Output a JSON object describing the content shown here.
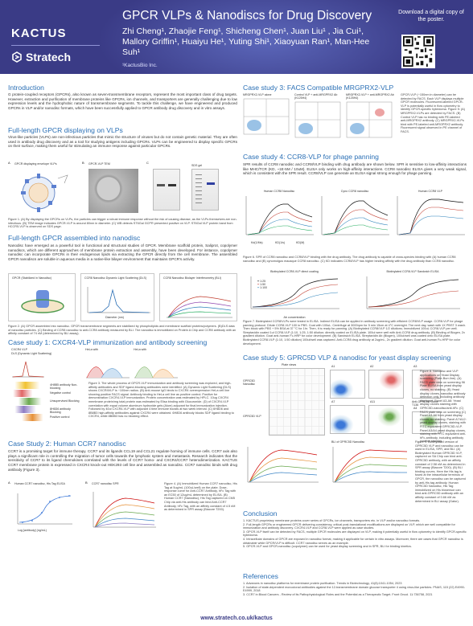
{
  "header": {
    "brand_kactus": "KACTUS",
    "brand_stratech": "Stratech",
    "title": "GPCR VLPs & Nanodiscs  for Drug Discovery",
    "authors_line1": "Zhi Cheng¹, Zhaojie Feng¹, Shicheng Chen¹, Juan Liu¹ , Jia Cui¹,",
    "authors_line2": "Mallory Griffin¹, Huaiyu He¹, Yuting Shi¹, Xiaoyuan Ran¹, Man-Hee Suh¹",
    "affiliation": "¹KactusBio Inc.",
    "download": "Download a digital copy of the poster."
  },
  "left": {
    "intro_title": "Introduction",
    "intro_text": "G protein-coupled receptors (GPCRs), also known as seven-transmembrane receptors, represent the most important class of drug targets. However, extraction and purification of membrane proteins like GPCRs, ion channels, and transporters are generally challenging due to low expression levels and the hydrophobic nature of transmembrane segments. To tackle this challenge, we have engineered and produced GPCRs in VLP and/or nanodisc formats, which have been successfully applied to GPCR antibody drug discovery and in vitro assays.",
    "vlp_title": "Full-length GPCR displaying on VLPs",
    "vlp_text": "Virus-like particles (VLPs) are non-infectious particles that mimic the structure of viruses but do not contain genetic material. They are often used in antibody drug discovery and as a tool for studying antigens including GPCRs. VLPs can be engineered to display specific GPCRs on their surface, making them useful for stimulating an immune response against particular GPCRs.",
    "vlp_panels": [
      "A",
      "B",
      "C"
    ],
    "vlp_panel_a": "GPCR displaying envelope VLPs",
    "vlp_panel_b": "GPCR-VLP TEM",
    "vlp_panel_c_gel": "SDS gel",
    "vlp_caption": "Figure 1. (A) By displaying the GPCRs on VLPs, the particles can trigger a robust immune response without the risk of causing disease, as the VLPs themselves are non-infectious. (B) TEM image indicates GPCR-VLP is around 80nm in diameter. (C) WB detects ST6Gal GCPR presented positive on VLP. ST6Gal VLP protein band from HCCR5-VLP is observed on SDS page.",
    "nano_title": "Full-length GPCR assembled into nanodisc",
    "nano_text": "Nanodisc have emerged as a powerful tool in functional and structural studies of GPCR. Membrane scaffold protein, Saliprot, copolymer nanodiscs, which are different approaches of membrane protein extraction and assembly, have been developed. For instance, copolymer nanodisc can incorporate GPCRs in their endogenous lipids via extracting the GPCR directly from the cell membrane. The assembled GPCR nanodiscs are soluble in aqueous media in a native-like bilayer environment that maintains GPCR's activity.",
    "nano_panel_a": "GPCR (Stabilized in Nanodisc)",
    "nano_panel_b": "CCR8 Nanodisc Dynamic Light Scattering (DLS)",
    "nano_panel_c": "CCR8 Nanodisc Biolayer Interferometry (BLI)",
    "nano_axis_b": "Diameter (nm)",
    "nano_caption": "Figure 2. (A) GPCR assembled into nanodisc. GPCR transmembrane segments are stabilized by phospholipids and membrane scaffold proteins/polymers. (B)DLS data of nanodisc particles. (C) Binding of CCR8 nanodisc to anti-CCR8 antibody measured by BLI. The nanodisc is immobilized on Protein A Chip and CCR8 antibody with an affinity constant of 74 nM (determined by BLI assay).",
    "cxcr4_title": "Case study 1: CXCR4-VLP immunization and antibody screening",
    "cxcr4_labels": [
      "CXCR4 VLP",
      "DLS (Dynamic Light Scattering)",
      "HeLa with  ",
      "HeLa with  "
    ],
    "cxcr4_legend": [
      "4H8B5 antibody Non-blocking",
      "Negative control",
      "Unsupervised Blocking",
      "8H6D6 antibody Blocking",
      "Positive control"
    ],
    "cxcr4_caption": "Figure 3. The whole process of GPCR-VLP immunization and antibody screening was explored, and high-affinity antibodies and SDF ligand-blocking antibodies were identified. (A) Dynamic Light Scattering (DLS) shows CXCR4VLP is ~100nm radius. (B) Anti-mouse IgG binds to CXCR4 overexpression HeLa cell line showing positive FACS signal. Antibody binding to HeLa cell line as positive control. Positive for demonstration CXCR4-VLP immunization. Protein concentration was estimated by HPLC. 10ug CXCR4 membrane protein/mg total protein was estimated by Elisa binding with Glucuronide. (D) of CXCR4-VLP correlation with equal volume aluminum hydroxide gels (Alum) adjuvant for final immunization injection. Followed by 40ul CXCR4-VLP with adjuvant 4 time immune boosts at two week interval. (C) 6H8D6 and 8B8B3 high-affinity antibodies against CXCR4 were obtained. 6H8D6 antibody blocks SDF ligand binding to CXCR4, while 8B8B3 has no blocking effect.",
    "ccr7_title": "Case Study 2: Human CCR7 nanodisc",
    "ccr7_text": "CCR7 is a promising target for immune therapy. CCR7 and its ligands CCL19 and CCL21 regulate homing of immune cells. CCR7 axis also plays a significant role in controlling the migration of tumor cells towards the lymphatic system and metastasis. Research indicates that the sensitivity of CCR7 to its ligand chemokines correlated with the levels of CCR7 homo- and CXCR4/CCR7 heterodimerization. KACTUS CCR7 membrane protein is expressed in CXCR4 knock-out HEK293 cell line and assembled as nanodisc. CCR7 nanodisc binds with drug antibody (Figure 3).",
    "ccr7_panel_a": "Human CCR7 nanodisc, His Tag ELISA",
    "ccr7_panel_b": "CCR7 nanodisc SPR",
    "ccr7_axis_a": "Log [antibody] (ng/mL)",
    "ccr7_caption": "Figure 4. (A) Immobilized Human CCR7 nanodisc, His Tag at 5ug/mL (100uL/well) on the plate. Dose-response curve for Anti-CCR7 Antibody, hFc Tag with an EC50 of 12ug/mL determined by ELISA. (B) Human CCR7 (Nanodisc), His Tag captured on CM5 Chip via anti-His antibody can bind Anti-CCR7 Antibody, hFc Tag, with an affinity constant of 4.5 nM as determined in SPR assay (Biacore T200)."
  },
  "right": {
    "facs_title": "Case study 3: FACS Compatible MRGPRX2-VLP",
    "facs_panels": [
      {
        "name": "MRGPRX2-VLP alone",
        "q": [
          "0.0%",
          "0.0%",
          "0.96%",
          "0.39%"
        ]
      },
      {
        "name": "Control VLP + anti-MRGPRX2 Ab (K125H4)",
        "q": [
          "0.04%",
          "0.04%",
          "1.01%",
          "0.31%"
        ]
      },
      {
        "name": "MRGPRX2-VLP + anti-MRGPRX2 Ab (K125H4)",
        "q": [
          "0.08%",
          "6.11%",
          "0.75%",
          "1.88%"
        ]
      }
    ],
    "facs_note": "GPCR-VLP (~150nm in diameter) can be detected by FACS. Each VLP displays multiple GPCR molecules. Fluorescent-labeled GPCR-VLP is potentially useful in flow cytometry to identify GPCR-specific hybridoma. Figure 5: (A) MRGPRX2-VLPs are detected by FACS. (B) Control VLP has no binding with PE-labeled anti-MRGPRX2 antibody. (C) MRGPRX2-VLPs bind with PE-labeled anti-MRGPRX2 antibody. Fluorescent signal observed in PE channel of FACS.",
    "ccr8_title": "Case study 4:  CCR8-VLP  for phage panning",
    "ccr8_text": "SPR results of CCR8 nanodisc and CCR8/VLP binding with drug antibody are shown below. SPR is sensitive to low-affinity interactions like MHC/TCR (KD, ~1E-5M / 10uM). ELISA only works on high-affinity interactions. CCR8 nanodisc ELISA gives a very weak signal, which is consistent with the SPR result. CCR8/VLP can generate an ELISA signal strong enough for phage panning.",
    "spr_panels": [
      "Human CCR8 Nanodisc",
      "Cyno CCR8 nanodisc",
      "Human CCR8 VLP"
    ],
    "spr_table": [
      "Kd(1/Ms)",
      "KD(1/s)",
      "KD(M)"
    ],
    "spr_caption": "Figure 6. SPR of CCR8 nanodisc and CCR8/VLP binding with the drug antibody. The drug antibody is capable of cross-species binding with (A) human CCR8 nanodisc and (B) cynomolgus macaque CCR8 nanodisc. (C) KD indicates CCR8/VLP has higher binding affinity with the drug antibody than CCR8 nanodisc.",
    "elisa_panels": [
      "Biotinylated CCR8-VLP direct coating",
      "Biotinylated CCR8-VLP Sandwich ELISA"
    ],
    "elisa_axis": "Ab concentration",
    "elisa_legend": [
      "1:25",
      "1:50",
      "1:100"
    ],
    "elisa_caption": "Figure 7. Biotinylated CCR8/VLPs were tested in ELISA. Indirect ELISA can be applied in antibody screening with efficient CCR8/VLP usage. CCR8-VLP for phage panning protocol. Dilute CCR8-VLP 100 in PBS. Coat with 100uL. Centrifuge at 3000rpm for 5 min 15cm at 4°C overnight. The next day, wash with 1X PBST 3 wash. Then block with PBS + 5% BSA at 37 °C for 1hr. Then, it is ready for panning. (A) Biotinylated CCR8/VLP 1/2 dilutions; Immobilized 100uL CCR8-VLP per well. Streptavidin coated 1ul CCR8-VLP (1:10, 1:25, 1:50 dilution; directly coated on ELISA plate. 100ul were well with Anti-CCR8 drug antibody. (B) Binding of Biogen, 2x gradient dilution. Goat anti-human Fc-HRP for color development. (B) Sandwich ELISA. Streptavidin Ab (Biogen), 100ul/well was coated onto ELISA plate. Biotinylated CCR8-VLP (1:10, 1:50 dilution) 100ul/well was captured. Anti-CCR8 drug antibody at 2ug/mL, 2x gradient dilution. Goat anti-human Fc-HRP for color development.",
    "gprc_title": "Case study 5: GPRC5D VLP & nanodisc  for yeast display screening",
    "gprc_row_labels": [
      "GPRC5D Nanodisc",
      "GPRC5D VLP"
    ],
    "gprc_plate": "Plate views",
    "gprc_clone": "Anti-GPRC5D Clone T136",
    "gprc_legend_b": "BLI of GPRC5D Nanodisc",
    "gprc_cells": [
      "A1",
      "A2",
      "A3",
      "A4",
      "A7",
      "A11"
    ],
    "gprc_caption1": "Figure 8. Nanodisc and VLP applications on Yeast Display screening (Plate-Burr-line). (A) FACS plate view on screening 96 Plate ELISA from yeast display clones, no staining. (B) Yeast display clones, nanodisc antibody detection only, including antibody displayed. Panel A3-A6: Yeast display clones staining with GPRC5D-nanodisc/anti-hFc. (C) FACS plate view on screening (C) Panel A3-A6 from yeast display clones, no staining. Panel A7/A12: yeast display clones, staining with FITC equivalent GPRC5D-VLP. Panel A3/A4 yeast display clones, staining with FITC equivalent anti-hFc-antibody, including antibody positive staining.",
    "gprc_caption2": "Figure 9. Biotinylated version of GPRC5D VLP and nanodisc can be used in ELISA, SPR, and BLI. (A) Biotinylated Human GPRC5D VLP, captured on SA Chip can bind anti-GPRC5D antibody, with an affinity constant of 2.58 nM as determined in SPR assay (Biacore T200). (B) BLI binding curves. Here the His tag is fused at the intracellular terminus of GPCR, the nanodisc can be captured by anti-His tag antibody. Human GPRC5D Nanodisc, His Tag immobilized on His biosensor can bind anti-GPRC5D antibody with an affinity constant of 0.66 nM as determined in BLI assay (Gator).",
    "conc_title": "Conclusion",
    "conclusions": [
      "1. KACTUS proprietary membrane proteins cover series of GPCRs, ion channels, transporters etc. in VLP and/or nanodisc formats.",
      "2. Full-length GPCRs or engineered GPCR delivering consistency, critical post-translational modifications are displayed on VLP, which are well compatible for immunization and antibody discovery. CXCR4-VLP and CCR8-VLP were applied as case studies.",
      "3. GPCR-VLP itself can be detected by FACS, multiple GPCR molecules are displayed on VLP, making it potentially useful in flow cytometry to identify GPCR-specific hybridoma.",
      "4. Intracellular domains of GPCR are exposed in nanodisc format, making it applicable for certain in vitro assays. Moreover, there are cases that GPCR nanodisc is obtainable while GPCR/VLP is difficult. CCR7 nanodisc serves as an example.",
      "5. GPCR-VLP and GPCR-nanodisc (copolymer) can be used for yeast display screening and in SPR, BLI for binding kinetics."
    ],
    "ref_title": "References",
    "references": [
      "1. Advances in nanodisc platforms for membrane protein purification. Trends in Biotechnology, 41(8):1041-1054, 2023",
      "2. Isolation of state-dependent monoclonal antibodies against the 12-transmembrane domain glucose transporter 4 using virus-like particles. PNAS, 115 (22) E4990-E4999, 2018",
      "3. CCR7 in Blood Cancers - Review of its Pathophysiological Roles and the Potential as a Therapeutic Target. Front Oncol. 11:736758, 2021"
    ]
  },
  "footer": {
    "url": "www.stratech.co.uk/kactus"
  },
  "colors": {
    "header": "#3a3b86",
    "section": "#2a6fb5",
    "accent": "#2fa8e0"
  }
}
